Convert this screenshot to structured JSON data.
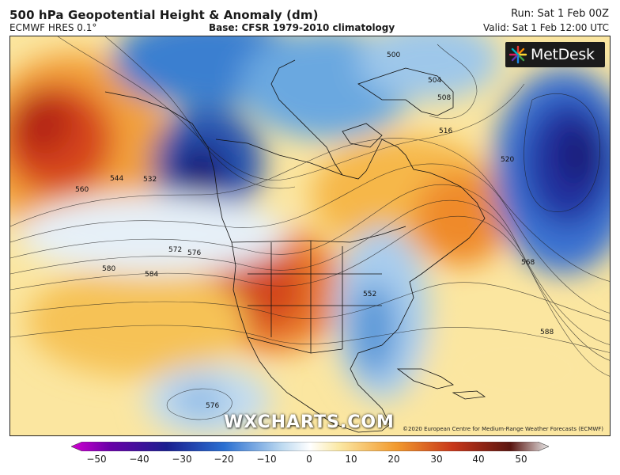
{
  "header": {
    "title": "500 hPa Geopotential Height & Anomaly (dm)",
    "model": "ECMWF HRES 0.1°",
    "base": "Base: CFSR 1979-2010 climatology",
    "run": "Run: Sat 1 Feb 00Z",
    "valid": "Valid: Sat 1 Feb 12:00 UTC"
  },
  "brand": {
    "logo_text": "MetDesk",
    "watermark": "WXCHARTS.COM"
  },
  "copyright": "©2020 European Centre for Medium-Range Weather Forecasts (ECMWF)",
  "contours": {
    "c500": "500",
    "c504": "504",
    "c508": "508",
    "c516": "516",
    "c520": "520",
    "c532": "532",
    "c544": "544",
    "c560": "560",
    "c568": "568",
    "c572": "572",
    "c576a": "576",
    "c576b": "576",
    "c580": "580",
    "c584": "584",
    "c588": "588",
    "c552": "552"
  },
  "colorbar": {
    "ticks": [
      "−50",
      "−40",
      "−30",
      "−20",
      "−10",
      "0",
      "10",
      "20",
      "30",
      "40",
      "50"
    ],
    "colors": {
      "min": "#d200d2",
      "neg_deep": "#1a1f8f",
      "neg": "#2a6fd1",
      "neg_light": "#bcd9f0",
      "zero": "#ffffff",
      "pos_light": "#fbe9a6",
      "pos": "#f29a2e",
      "pos_deep": "#b3200f",
      "max": "#3b1d1d"
    }
  }
}
